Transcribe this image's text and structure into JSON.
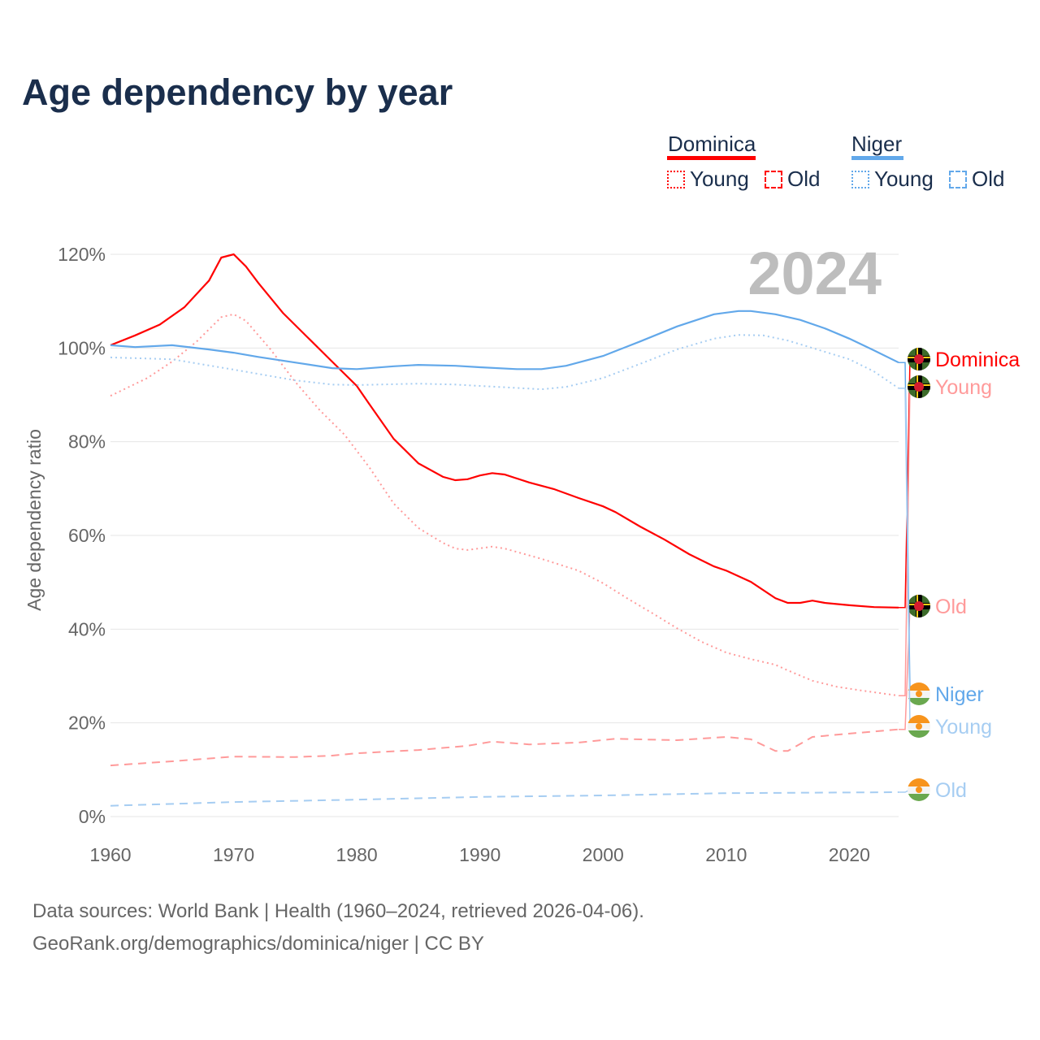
{
  "title": "Age dependency by year",
  "sources": [
    "Data sources: World Bank | Health (1960–2024, retrieved 2026-04-06).",
    "GeoRank.org/demographics/dominica/niger | CC BY"
  ],
  "year_watermark": "2024",
  "legend": {
    "groups": [
      {
        "name": "Dominica",
        "color": "#ff0000",
        "items": [
          "Young",
          "Old"
        ]
      },
      {
        "name": "Niger",
        "color": "#62a8ea",
        "items": [
          "Young",
          "Old"
        ]
      }
    ]
  },
  "chart_data": {
    "type": "line",
    "title": "Age dependency by year",
    "xlabel": "",
    "ylabel": "Age dependency ratio",
    "xlim": [
      1960,
      2024
    ],
    "ylim": [
      0,
      120
    ],
    "xticks": [
      "1960",
      "1970",
      "1980",
      "1990",
      "2000",
      "2010",
      "2020"
    ],
    "yticks": [
      "0%",
      "20%",
      "40%",
      "60%",
      "80%",
      "100%",
      "120%"
    ],
    "grid": true,
    "series": [
      {
        "name": "Dominica",
        "label": "Dominica",
        "color": "#ff0000",
        "style": "solid",
        "flag": "dominica",
        "x": [
          1960,
          1962,
          1964,
          1966,
          1968,
          1969,
          1970,
          1971,
          1972,
          1974,
          1976,
          1978,
          1980,
          1981,
          1983,
          1985,
          1987,
          1988,
          1989,
          1990,
          1991,
          1992,
          1994,
          1996,
          1998,
          2000,
          2001,
          2003,
          2005,
          2007,
          2009,
          2010,
          2012,
          2014,
          2015,
          2016,
          2017,
          2018,
          2020,
          2022,
          2024
        ],
        "y": [
          100.6,
          102.7,
          105,
          108.7,
          114.4,
          119.3,
          120,
          117.4,
          113.9,
          107.5,
          102.3,
          97.1,
          91.9,
          88.1,
          80.6,
          75.4,
          72.5,
          71.8,
          72,
          72.8,
          73.3,
          73,
          71.3,
          69.9,
          68,
          66.2,
          65,
          61.9,
          59.1,
          56,
          53.4,
          52.5,
          50.1,
          46.6,
          45.6,
          45.6,
          46.1,
          45.6,
          45.1,
          44.7,
          44.6
        ]
      },
      {
        "name": "Dominica Young",
        "label": "Young",
        "color": "#ff9a9a",
        "style": "dotted",
        "flag": "dominica",
        "x": [
          1960,
          1963,
          1965,
          1967,
          1969,
          1970,
          1971,
          1973,
          1975,
          1977,
          1979,
          1981,
          1983,
          1985,
          1987,
          1988,
          1989,
          1991,
          1992,
          1995,
          1998,
          2000,
          2002,
          2004,
          2006,
          2008,
          2010,
          2012,
          2014,
          2015,
          2017,
          2019,
          2021,
          2024
        ],
        "y": [
          89.8,
          93.6,
          97.1,
          101.4,
          106.6,
          107.2,
          105.8,
          99.7,
          92.8,
          86.7,
          81.5,
          74.6,
          66.8,
          61.6,
          58.4,
          57.2,
          56.9,
          57.6,
          57.2,
          55,
          52.5,
          49.8,
          46.5,
          43.4,
          40.2,
          37.3,
          35,
          33.6,
          32.4,
          31.2,
          29,
          27.7,
          26.9,
          25.8
        ]
      },
      {
        "name": "Dominica Old",
        "label": "Old",
        "color": "#ff9a9a",
        "style": "dashed",
        "flag": "dominica",
        "x": [
          1960,
          1965,
          1970,
          1975,
          1978,
          1980,
          1985,
          1989,
          1991,
          1994,
          1998,
          2001,
          2006,
          2010,
          2012,
          2014,
          2015,
          2017,
          2020,
          2024
        ],
        "y": [
          10.9,
          11.8,
          12.8,
          12.7,
          13,
          13.5,
          14.2,
          15.1,
          16,
          15.4,
          15.8,
          16.6,
          16.3,
          17,
          16.5,
          14,
          14,
          17,
          17.7,
          18.6
        ]
      },
      {
        "name": "Niger",
        "label": "Niger",
        "color": "#62a8ea",
        "style": "solid",
        "flag": "niger",
        "x": [
          1960,
          1962,
          1965,
          1968,
          1970,
          1972,
          1975,
          1978,
          1980,
          1983,
          1985,
          1988,
          1990,
          1993,
          1995,
          1997,
          2000,
          2003,
          2006,
          2009,
          2011,
          2012,
          2014,
          2016,
          2018,
          2020,
          2022,
          2024
        ],
        "y": [
          100.6,
          100.2,
          100.6,
          99.7,
          99,
          98.1,
          96.9,
          95.7,
          95.5,
          96.1,
          96.4,
          96.2,
          95.9,
          95.5,
          95.5,
          96.2,
          98.3,
          101.4,
          104.6,
          107.2,
          107.9,
          107.9,
          107.2,
          106,
          104.2,
          102,
          99.5,
          96.9
        ]
      },
      {
        "name": "Niger Young",
        "label": "Young",
        "color": "#a6cdf2",
        "style": "dotted",
        "flag": "niger",
        "x": [
          1960,
          1965,
          1970,
          1975,
          1978,
          1980,
          1985,
          1988,
          1990,
          1995,
          1997,
          2000,
          2003,
          2006,
          2009,
          2011,
          2013,
          2015,
          2017,
          2020,
          2022,
          2024
        ],
        "y": [
          98,
          97.6,
          95.4,
          93.1,
          92.2,
          92.1,
          92.4,
          92.2,
          91.9,
          91.2,
          91.7,
          93.6,
          96.6,
          99.7,
          102,
          102.8,
          102.7,
          101.6,
          100,
          97.6,
          95,
          91.4
        ]
      },
      {
        "name": "Niger Old",
        "label": "Old",
        "color": "#a6cdf2",
        "style": "dashed",
        "flag": "niger",
        "x": [
          1960,
          1970,
          1980,
          1990,
          2000,
          2010,
          2024
        ],
        "y": [
          2.3,
          3.1,
          3.6,
          4.2,
          4.5,
          5,
          5.2
        ]
      }
    ]
  }
}
